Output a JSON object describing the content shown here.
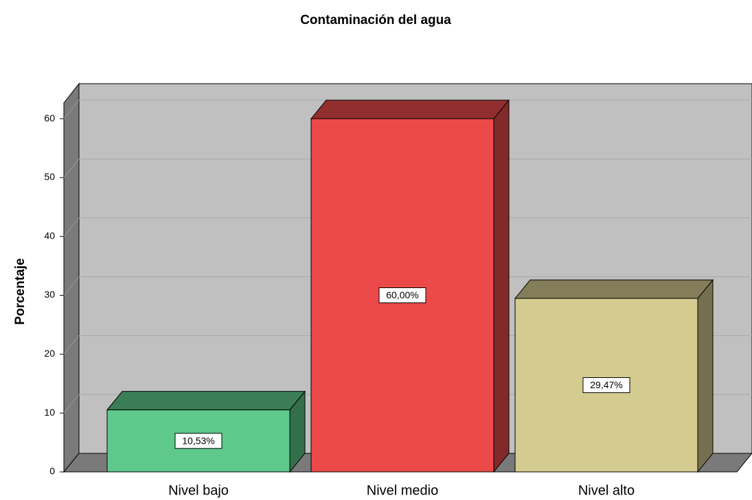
{
  "chart_data": {
    "type": "bar3d",
    "title": "Contaminación del agua",
    "ylabel": "Porcentaje",
    "categories": [
      "Nivel bajo",
      "Nivel medio",
      "Nivel alto"
    ],
    "values": [
      10.53,
      60.0,
      29.47
    ],
    "value_labels": [
      "10,53%",
      "60,00%",
      "29,47%"
    ],
    "colors": [
      "#5ec98b",
      "#ec4a4a",
      "#d3cb8f"
    ],
    "ylim": [
      0,
      63
    ],
    "yticks": [
      0,
      10,
      20,
      30,
      40,
      50,
      60
    ],
    "grid": true
  }
}
